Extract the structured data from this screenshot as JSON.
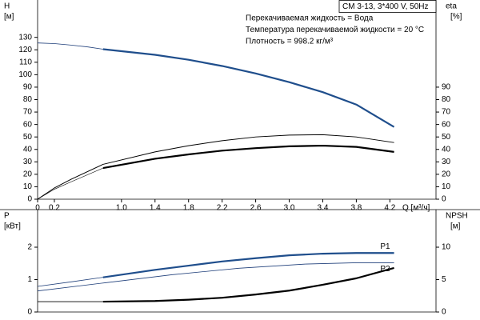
{
  "chart_data": [
    {
      "type": "line",
      "title": "CM 3-13, 3*400 V, 50Hz",
      "annotations": [
        "Перекачиваемая жидкость = Вода",
        "Температура перекачиваемой жидкости = 20 °C",
        "Плотность = 998.2 кг/м³"
      ],
      "ylabel": "H",
      "yunit": "[м]",
      "y2label": "eta",
      "y2unit": "[%]",
      "xlabel": "Q [м³/ч]",
      "xlim": [
        0,
        4.75
      ],
      "ylim": [
        0,
        160
      ],
      "y2lim": [
        0,
        160
      ],
      "xticks": [
        0,
        0.2,
        {
          "value": 1,
          "label": "1.0"
        },
        1.4,
        1.8,
        2.2,
        2.6,
        {
          "value": 3,
          "label": "3.0"
        },
        3.4,
        3.8,
        4.2
      ],
      "yticks": [
        0,
        10,
        20,
        30,
        40,
        50,
        60,
        70,
        80,
        90,
        100,
        110,
        120,
        130
      ],
      "y2ticks": [
        0,
        10,
        20,
        30,
        40,
        50,
        60,
        70,
        80,
        90
      ],
      "series": [
        {
          "color": "#1f3f7a",
          "line_width": 0.8,
          "x": [
            0,
            0.2,
            0.4,
            0.6,
            0.78
          ],
          "values": [
            125.5,
            125,
            123.8,
            122.3,
            120.5
          ]
        },
        {
          "color": "#1f4e8c",
          "line_width": 2.2,
          "x": [
            0.78,
            1.4,
            1.8,
            2.2,
            2.6,
            3.0,
            3.4,
            3.8,
            4.25
          ],
          "values": [
            120.5,
            116,
            112,
            107,
            101,
            94,
            86,
            76,
            58
          ]
        },
        {
          "color": "#000000",
          "line_width": 1,
          "axis": "y2",
          "x": [
            0,
            0.2,
            0.4,
            0.78,
            1.4,
            1.8,
            2.2,
            2.6,
            3.0,
            3.4,
            3.8,
            4.25
          ],
          "values": [
            0,
            9,
            16,
            28,
            38,
            43,
            47,
            50,
            51.5,
            51.8,
            50,
            45.5
          ]
        },
        {
          "color": "#000000",
          "line_width": 0.6,
          "axis": "y2",
          "x": [
            0,
            0.2,
            0.4,
            0.78
          ],
          "values": [
            0,
            8,
            14,
            25
          ]
        },
        {
          "color": "#000000",
          "line_width": 2.2,
          "axis": "y2",
          "x": [
            0.78,
            1.4,
            1.8,
            2.2,
            2.6,
            3.0,
            3.4,
            3.8,
            4.25
          ],
          "values": [
            25,
            32.5,
            36,
            39,
            41,
            42.5,
            43,
            42,
            38
          ]
        }
      ]
    },
    {
      "type": "line",
      "ylabel": "P",
      "yunit": "[кВт]",
      "y2label": "NPSH",
      "y2unit": "[м]",
      "xlim": [
        0,
        4.75
      ],
      "ylim": [
        0,
        3.16
      ],
      "y2lim": [
        0,
        15.8
      ],
      "yticks": [
        0,
        1,
        2
      ],
      "y2ticks": [
        0,
        5,
        10
      ],
      "series": [
        {
          "color": "#1f3f7a",
          "line_width": 0.8,
          "x": [
            0,
            0.4,
            0.78
          ],
          "values": [
            0.79,
            0.93,
            1.07
          ]
        },
        {
          "name": "P1",
          "label_position": "above",
          "color": "#1f4e8c",
          "line_width": 2.2,
          "x": [
            0.78,
            1.4,
            1.8,
            2.2,
            2.6,
            3.0,
            3.4,
            3.8,
            4.25
          ],
          "values": [
            1.07,
            1.3,
            1.43,
            1.56,
            1.66,
            1.75,
            1.8,
            1.82,
            1.82
          ]
        },
        {
          "name": "P2",
          "label_position": "below",
          "color": "#1f3f7a",
          "line_width": 0.8,
          "x": [
            0,
            0.8,
            1.6,
            2.4,
            3.2,
            3.8,
            4.25
          ],
          "values": [
            0.65,
            0.9,
            1.15,
            1.35,
            1.48,
            1.52,
            1.52
          ]
        },
        {
          "color": "#000000",
          "line_width": 0.8,
          "axis": "y2",
          "x": [
            0,
            0.78
          ],
          "values": [
            1.6,
            1.6
          ]
        },
        {
          "color": "#000000",
          "line_width": 2.2,
          "axis": "y2",
          "x": [
            0.78,
            1.4,
            1.8,
            2.2,
            2.6,
            3.0,
            3.4,
            3.8,
            4.25
          ],
          "values": [
            1.6,
            1.7,
            1.9,
            2.2,
            2.7,
            3.3,
            4.2,
            5.2,
            6.8
          ]
        }
      ]
    }
  ]
}
